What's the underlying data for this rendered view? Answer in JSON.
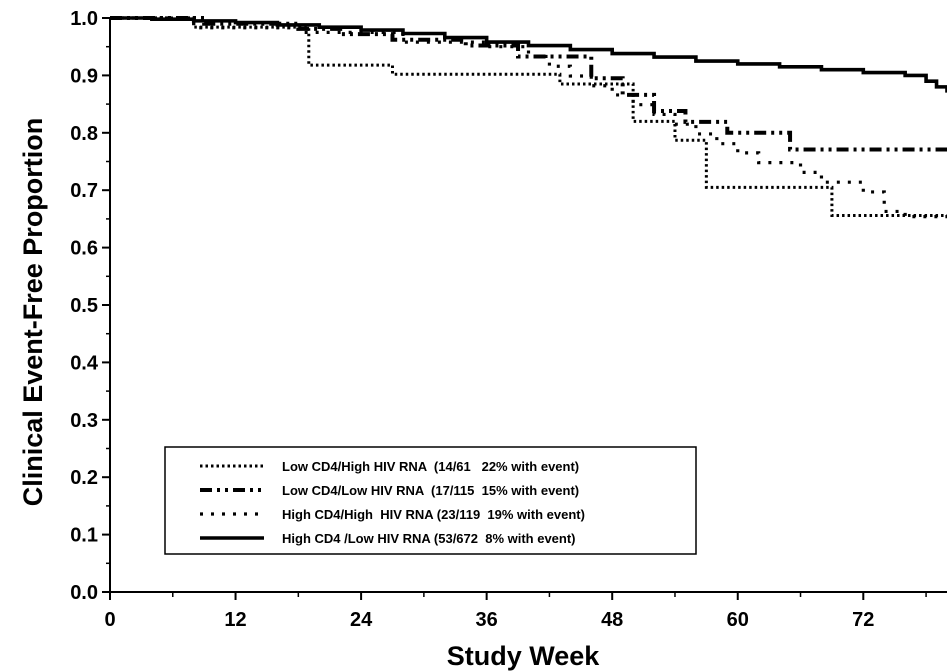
{
  "chart_data": {
    "type": "line",
    "xlabel": "Study Week",
    "ylabel": "Clinical Event-Free Proportion",
    "xlim": [
      0,
      80
    ],
    "ylim": [
      0.0,
      1.0
    ],
    "x_ticks": [
      0,
      12,
      24,
      36,
      48,
      60,
      72
    ],
    "x_tick_labels": [
      "0",
      "12",
      "24",
      "36",
      "48",
      "60",
      "72"
    ],
    "y_ticks": [
      0.0,
      0.1,
      0.2,
      0.3,
      0.4,
      0.5,
      0.6,
      0.7,
      0.8,
      0.9,
      1.0
    ],
    "y_tick_labels": [
      "0.0",
      "0.1",
      "0.2",
      "0.3",
      "0.4",
      "0.5",
      "0.6",
      "0.7",
      "0.8",
      "0.9",
      "1.0"
    ],
    "grid": false,
    "legend_position": "lower-left",
    "series": [
      {
        "name": "Low CD4/High HIV RNA  (14/61   22% with event)",
        "style": "dotted-fine",
        "x": [
          0,
          6,
          8,
          18,
          19,
          26,
          27,
          42,
          43,
          49,
          50,
          53,
          54,
          56,
          57,
          68,
          69,
          80
        ],
        "y": [
          1.0,
          1.0,
          0.984,
          0.984,
          0.918,
          0.918,
          0.902,
          0.902,
          0.885,
          0.885,
          0.82,
          0.82,
          0.787,
          0.787,
          0.705,
          0.705,
          0.656,
          0.656
        ]
      },
      {
        "name": "Low CD4/Low HIV RNA  (17/115  15% with event)",
        "style": "dash-dot-dot",
        "x": [
          0,
          5,
          9,
          15,
          18,
          20,
          22,
          23,
          27,
          30,
          34,
          36,
          39,
          43,
          46,
          47,
          49,
          50,
          52,
          53,
          55,
          56,
          59,
          60,
          62,
          64,
          65,
          68,
          80
        ],
        "y": [
          1.0,
          1.0,
          0.99,
          0.99,
          0.981,
          0.981,
          0.972,
          0.972,
          0.962,
          0.962,
          0.952,
          0.952,
          0.933,
          0.933,
          0.895,
          0.895,
          0.866,
          0.866,
          0.838,
          0.838,
          0.819,
          0.819,
          0.8,
          0.8,
          0.8,
          0.8,
          0.771,
          0.771,
          0.771
        ]
      },
      {
        "name": "High CD4/High  HIV RNA (23/119  19% with event)",
        "style": "dotted-coarse",
        "x": [
          0,
          4,
          8,
          12,
          18,
          22,
          28,
          34,
          36,
          40,
          42,
          44,
          46,
          48,
          50,
          52,
          54,
          56,
          58,
          60,
          62,
          64,
          66,
          68,
          70,
          72,
          74,
          76,
          80
        ],
        "y": [
          1.0,
          1.0,
          0.983,
          0.983,
          0.975,
          0.975,
          0.958,
          0.958,
          0.95,
          0.933,
          0.916,
          0.899,
          0.882,
          0.866,
          0.849,
          0.832,
          0.815,
          0.798,
          0.781,
          0.765,
          0.748,
          0.748,
          0.731,
          0.714,
          0.714,
          0.697,
          0.663,
          0.654,
          0.646
        ]
      },
      {
        "name": "High CD4 /Low HIV RNA (53/672  8% with event)",
        "style": "solid",
        "x": [
          0,
          4,
          8,
          12,
          16,
          20,
          24,
          28,
          32,
          36,
          40,
          44,
          48,
          52,
          56,
          60,
          64,
          68,
          72,
          76,
          78,
          79,
          80
        ],
        "y": [
          1.0,
          0.998,
          0.995,
          0.992,
          0.988,
          0.984,
          0.979,
          0.973,
          0.966,
          0.958,
          0.952,
          0.945,
          0.938,
          0.932,
          0.925,
          0.92,
          0.915,
          0.91,
          0.905,
          0.9,
          0.89,
          0.88,
          0.87
        ]
      }
    ]
  }
}
